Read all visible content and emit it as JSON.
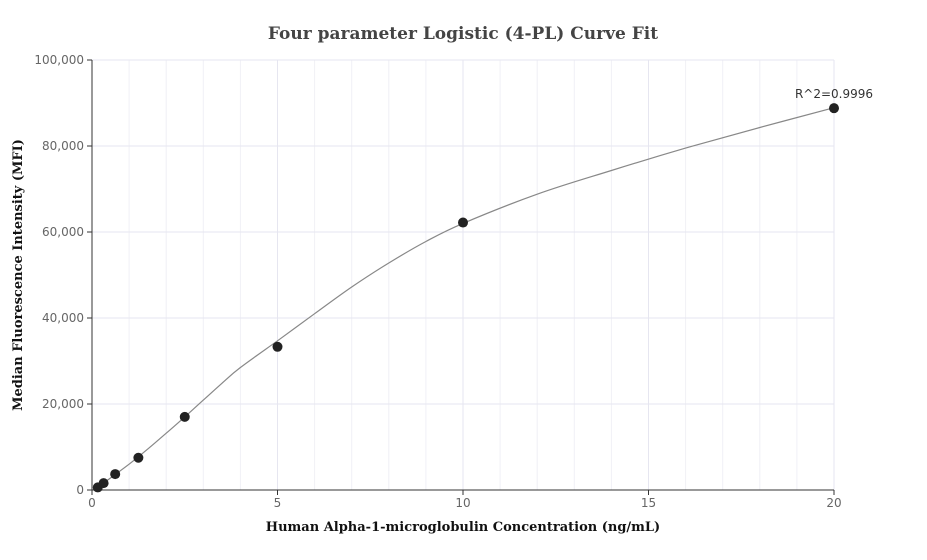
{
  "chart_data": {
    "type": "scatter",
    "title": "Four parameter Logistic (4-PL) Curve Fit",
    "xlabel": "Human Alpha-1-microglobulin Concentration (ng/mL)",
    "ylabel": "Median Fluorescence Intensity (MFI)",
    "xlim": [
      0,
      20
    ],
    "ylim": [
      0,
      100000
    ],
    "x_ticks": [
      0,
      5,
      10,
      15,
      20
    ],
    "x_tick_labels": [
      "0",
      "5",
      "10",
      "15",
      "20"
    ],
    "y_ticks": [
      0,
      20000,
      40000,
      60000,
      80000,
      100000
    ],
    "y_tick_labels": [
      "0",
      "20,000",
      "40,000",
      "60,000",
      "80,000",
      "100,000"
    ],
    "grid": true,
    "series": [
      {
        "x": [
          0.156,
          0.3125,
          0.625,
          1.25,
          2.5,
          5,
          10,
          20
        ],
        "y": [
          600,
          1600,
          3700,
          7500,
          17000,
          33300,
          62200,
          88800
        ]
      }
    ],
    "fit_curve": {
      "model": "4-PL",
      "x": [
        0.1,
        0.5,
        1,
        1.5,
        2,
        2.5,
        3,
        3.5,
        4,
        5,
        6,
        7,
        8,
        9,
        10,
        12,
        14,
        16,
        18,
        20
      ],
      "y": [
        300,
        2800,
        6000,
        9500,
        13200,
        17000,
        20900,
        24800,
        28500,
        34700,
        41000,
        47200,
        52800,
        57800,
        62000,
        68800,
        74300,
        79500,
        84300,
        88900
      ]
    },
    "annotation": "R^2=0.9996",
    "colors": {
      "marker": "#222222",
      "curve": "#888888",
      "grid": "#e6e6f0",
      "axis": "#333333"
    }
  }
}
